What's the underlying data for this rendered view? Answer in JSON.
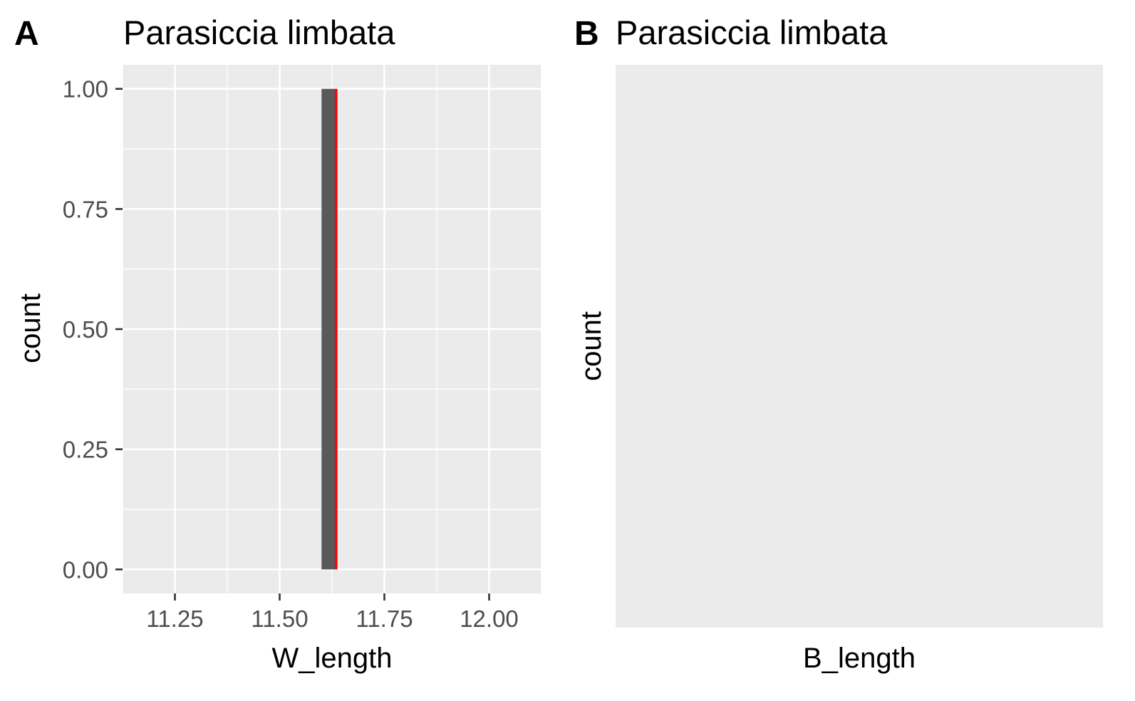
{
  "chart_data": [
    {
      "type": "bar",
      "panel_tag": "A",
      "title": "Parasiccia limbata",
      "xlabel": "W_length",
      "ylabel": "count",
      "xlim": [
        11.125,
        12.125
      ],
      "ylim": [
        -0.05,
        1.05
      ],
      "x_ticks": [
        11.25,
        11.5,
        11.75,
        12.0
      ],
      "x_tick_labels": [
        "11.25",
        "11.50",
        "11.75",
        "12.00"
      ],
      "y_ticks": [
        0,
        0.25,
        0.5,
        0.75,
        1.0
      ],
      "y_tick_labels": [
        "0.00",
        "0.25",
        "0.50",
        "0.75",
        "1.00"
      ],
      "grid": true,
      "bars": [
        {
          "x_start": 11.6,
          "x_end": 11.635,
          "count": 1
        }
      ],
      "bar_color": "#595959",
      "reference_line": {
        "x": 11.635,
        "color": "#ff0000"
      }
    },
    {
      "type": "bar",
      "panel_tag": "B",
      "title": "Parasiccia limbata",
      "xlabel": "B_length",
      "ylabel": "count",
      "bars": [],
      "grid": false
    }
  ]
}
